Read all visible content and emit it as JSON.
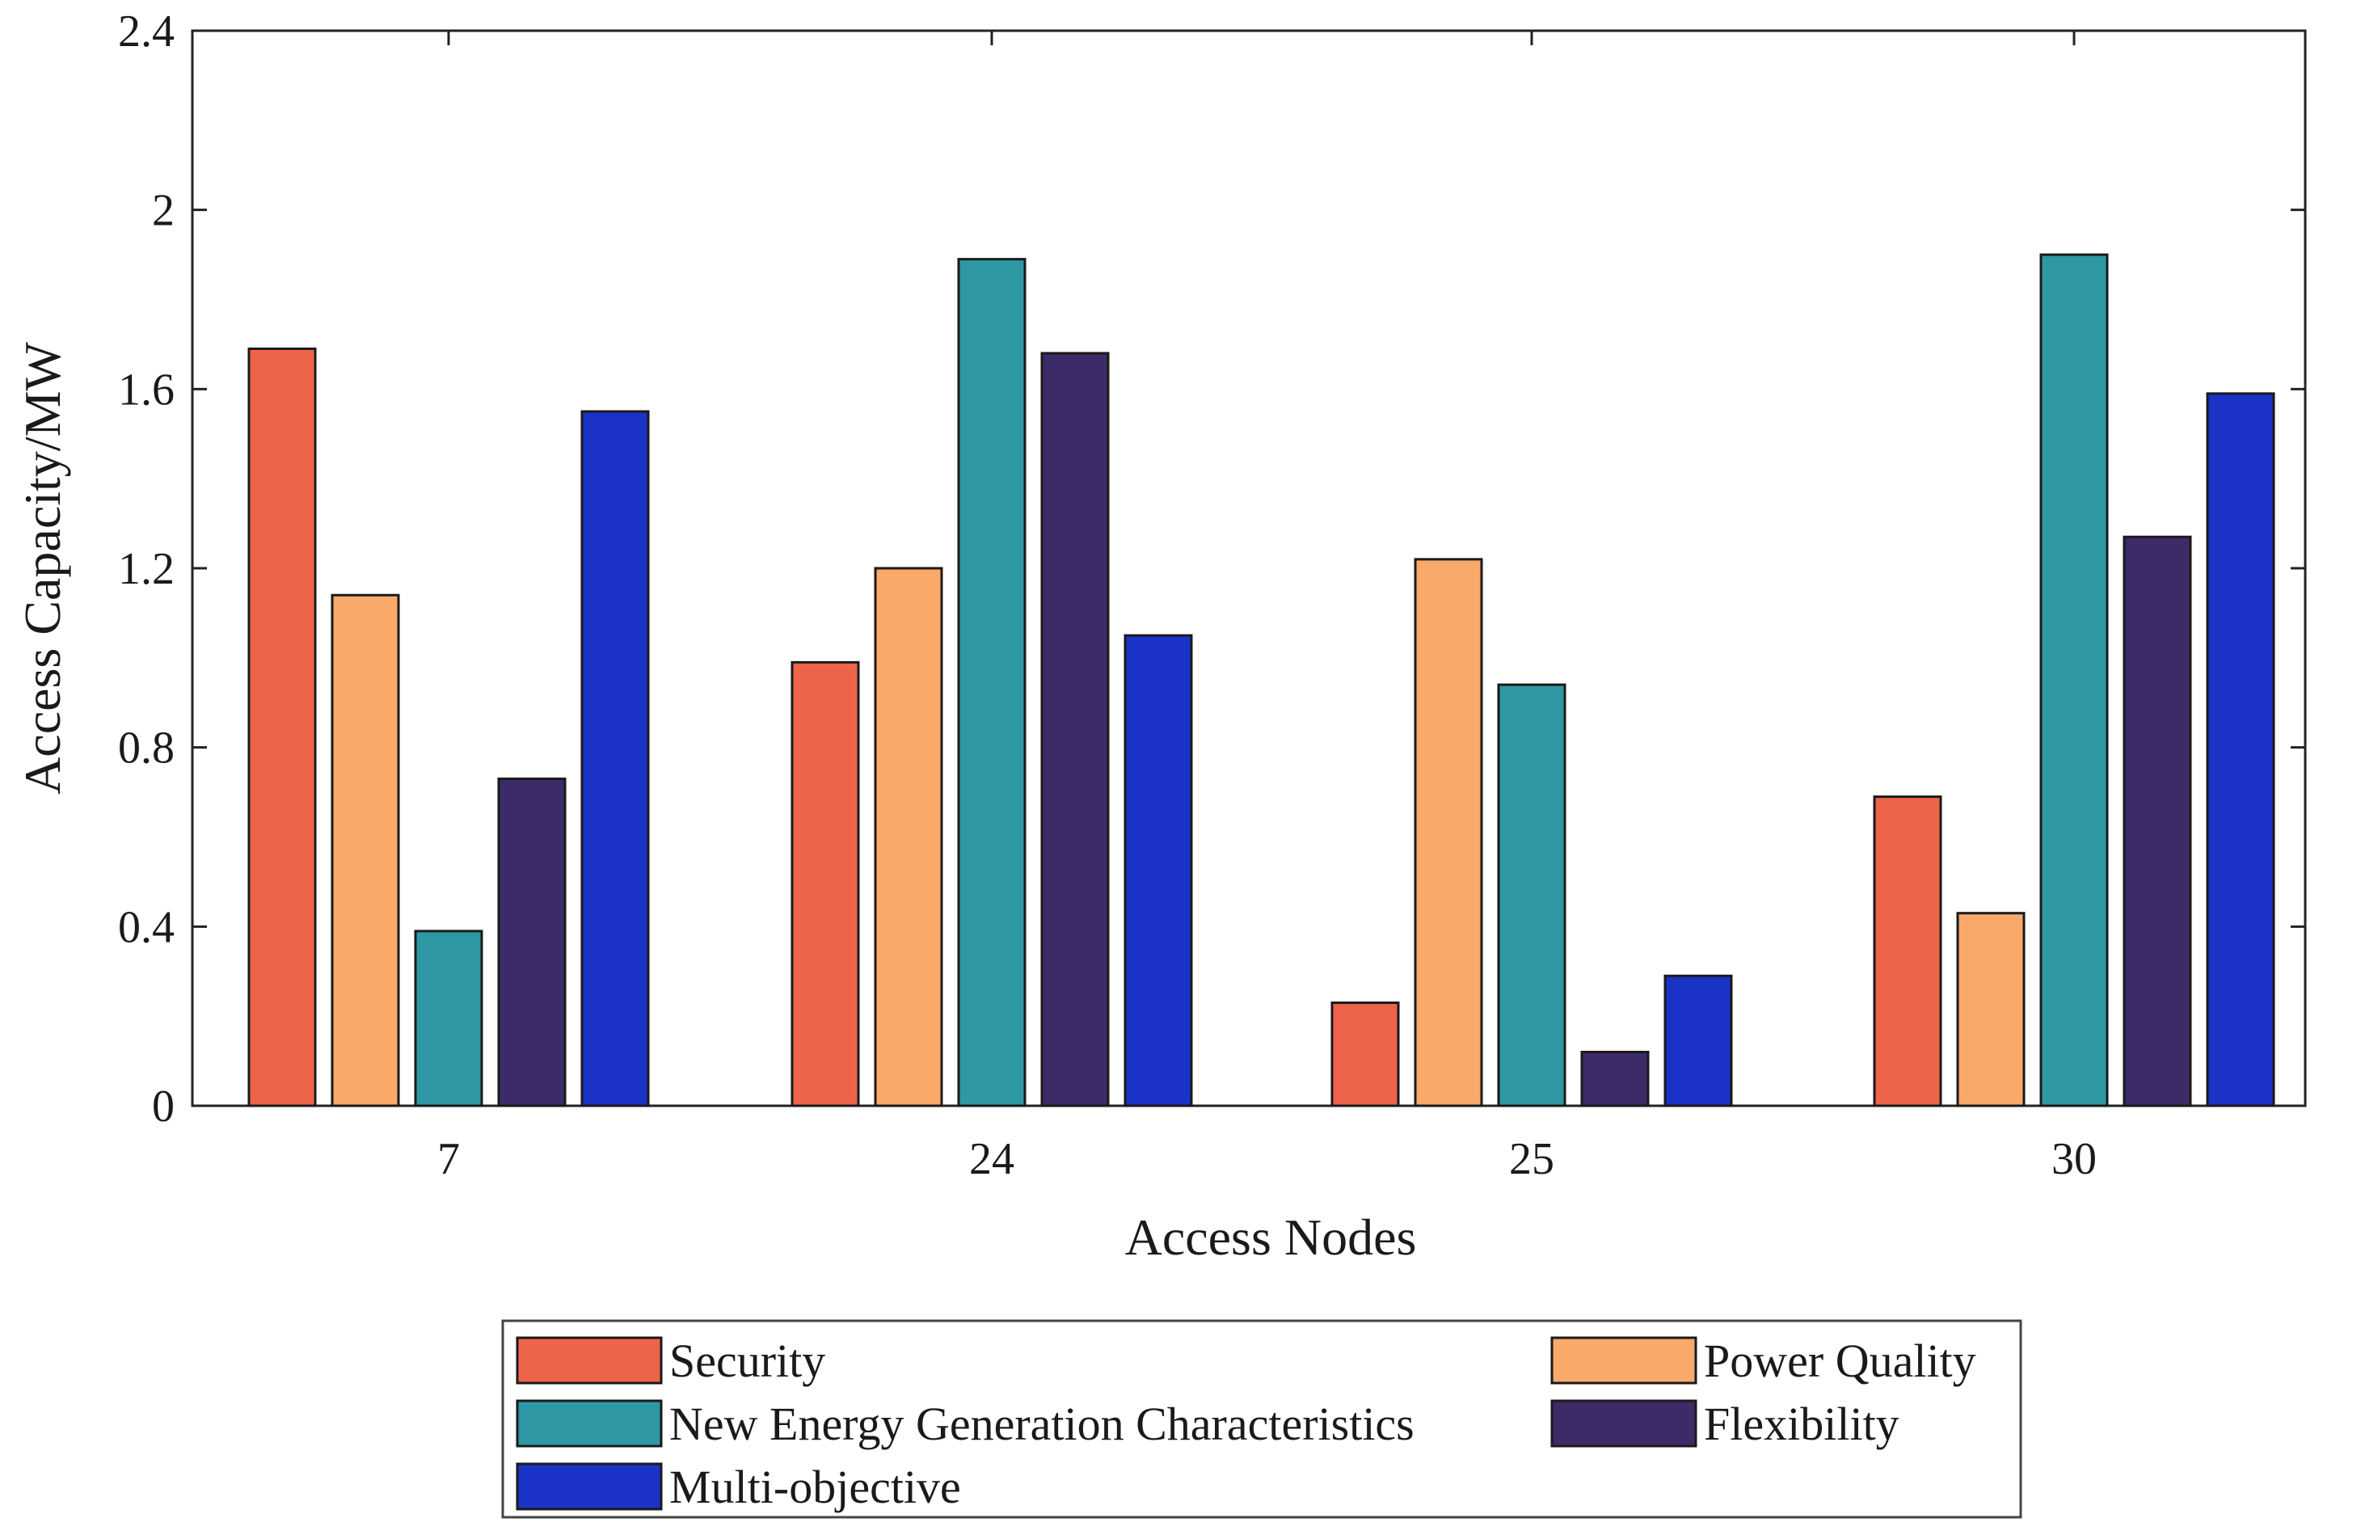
{
  "chart_data": {
    "type": "bar",
    "title": "",
    "xlabel": "Access Nodes",
    "ylabel": "Access Capacity/MW",
    "categories": [
      "7",
      "24",
      "25",
      "30"
    ],
    "ylim": [
      0,
      2.4
    ],
    "yticks": [
      "0",
      "0.4",
      "0.8",
      "1.2",
      "1.6",
      "2",
      "2.4"
    ],
    "legend_position": "bottom-center",
    "grid": false,
    "series": [
      {
        "name": "Security",
        "color": "#EE644A",
        "values": [
          1.69,
          0.99,
          0.23,
          0.69
        ]
      },
      {
        "name": "Power Quality",
        "color": "#F9A96A",
        "values": [
          1.14,
          1.2,
          1.22,
          0.43
        ]
      },
      {
        "name": "New Energy Generation Characteristics",
        "color": "#2E98A4",
        "values": [
          0.39,
          1.89,
          0.94,
          1.9
        ]
      },
      {
        "name": "Flexibility",
        "color": "#3C2B66",
        "values": [
          0.73,
          1.68,
          0.12,
          1.27
        ]
      },
      {
        "name": "Multi-objective",
        "color": "#1A33C6",
        "values": [
          1.55,
          1.05,
          0.29,
          1.59
        ]
      }
    ]
  }
}
